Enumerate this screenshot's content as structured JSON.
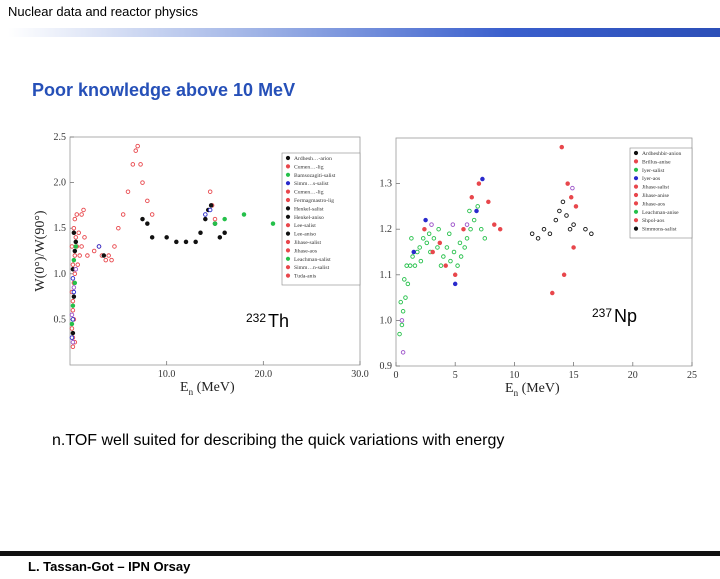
{
  "header": {
    "title": "Nuclear data and reactor physics"
  },
  "heading": "Poor knowledge above 10 MeV",
  "body_text": "n.TOF well suited for describing the quick variations with energy",
  "footer": {
    "author": "L. Tassan-Got – IPN Orsay"
  },
  "chart_data": [
    {
      "type": "scatter",
      "isotope": {
        "mass": "232",
        "symbol": "Th"
      },
      "ylabel": "W(0°)/W(90°)",
      "xlabel": {
        "main": "E",
        "sub": "n",
        "unit": "(MeV)"
      },
      "xlim": [
        0,
        30
      ],
      "ylim": [
        0,
        2.5
      ],
      "xticks": [
        "10.0",
        "20.0",
        "30.0"
      ],
      "yticks": [
        "0.5",
        "1.0",
        "1.5",
        "2.0",
        "2.5"
      ],
      "legend": [
        {
          "name": "Ardhesh…-arion",
          "color": "#111111"
        },
        {
          "name": "Cumen…-lig",
          "color": "#e8474c"
        },
        {
          "name": "Bamsozagiti-salist",
          "color": "#25c04a"
        },
        {
          "name": "Simm…s-salist",
          "color": "#2a2acc"
        },
        {
          "name": "Cumen…-lig",
          "color": "#e8474c"
        },
        {
          "name": "Fermagmastro-lig",
          "color": "#e8474c"
        },
        {
          "name": "Henkel-salist",
          "color": "#111111"
        },
        {
          "name": "Henkel-aniso",
          "color": "#111111"
        },
        {
          "name": "Lee-salist",
          "color": "#e8474c"
        },
        {
          "name": "Lee-aniso",
          "color": "#111111"
        },
        {
          "name": "Jihase-salist",
          "color": "#e8474c"
        },
        {
          "name": "Jihase-aos",
          "color": "#e8474c"
        },
        {
          "name": "Leachman-salist",
          "color": "#25c04a"
        },
        {
          "name": "Simm…n-salist",
          "color": "#e8474c"
        },
        {
          "name": "Tuda-anis",
          "color": "#e8474c"
        }
      ],
      "series": [
        {
          "color": "#e8474c",
          "points": [
            [
              0.2,
              0.4
            ],
            [
              0.3,
              0.6
            ],
            [
              0.2,
              0.8
            ],
            [
              0.4,
              0.9
            ],
            [
              0.3,
              1.1
            ],
            [
              0.5,
              1.2
            ],
            [
              0.2,
              1.3
            ],
            [
              0.3,
              0.3
            ],
            [
              0.4,
              0.5
            ],
            [
              0.3,
              0.7
            ],
            [
              0.5,
              1.0
            ],
            [
              0.6,
              1.4
            ],
            [
              0.4,
              1.5
            ],
            [
              0.5,
              1.6
            ],
            [
              0.7,
              1.3
            ],
            [
              0.8,
              1.1
            ],
            [
              1.0,
              1.2
            ],
            [
              1.2,
              1.3
            ],
            [
              0.9,
              1.45
            ],
            [
              1.5,
              1.4
            ],
            [
              1.8,
              1.2
            ],
            [
              2.5,
              1.25
            ],
            [
              3.0,
              1.3
            ],
            [
              3.3,
              1.2
            ],
            [
              3.7,
              1.15
            ],
            [
              4.0,
              1.2
            ],
            [
              4.3,
              1.15
            ],
            [
              4.6,
              1.3
            ],
            [
              5.0,
              1.5
            ],
            [
              5.5,
              1.65
            ],
            [
              6.0,
              1.9
            ],
            [
              6.5,
              2.2
            ],
            [
              6.8,
              2.35
            ],
            [
              7.0,
              2.4
            ],
            [
              7.3,
              2.2
            ],
            [
              7.5,
              2.0
            ],
            [
              8.0,
              1.8
            ],
            [
              8.5,
              1.65
            ],
            [
              14.5,
              1.9
            ],
            [
              14.7,
              1.75
            ],
            [
              15.0,
              1.6
            ],
            [
              1.2,
              1.65
            ],
            [
              1.4,
              1.7
            ],
            [
              0.7,
              1.65
            ],
            [
              0.3,
              0.2
            ],
            [
              0.5,
              0.25
            ]
          ]
        },
        {
          "color": "#111111",
          "points": [
            [
              0.3,
              0.35
            ],
            [
              0.4,
              0.75
            ],
            [
              0.3,
              1.05
            ],
            [
              0.5,
              1.25
            ],
            [
              0.6,
              1.35
            ],
            [
              0.4,
              1.45
            ],
            [
              7.5,
              1.6
            ],
            [
              8.0,
              1.55
            ],
            [
              8.5,
              1.4
            ],
            [
              10.0,
              1.4
            ],
            [
              11.0,
              1.35
            ],
            [
              12.0,
              1.35
            ],
            [
              13.0,
              1.35
            ],
            [
              13.5,
              1.45
            ],
            [
              14.0,
              1.6
            ],
            [
              14.3,
              1.7
            ],
            [
              14.6,
              1.75
            ],
            [
              15.0,
              1.55
            ],
            [
              15.5,
              1.4
            ],
            [
              16.0,
              1.45
            ],
            [
              3.5,
              1.2
            ]
          ]
        },
        {
          "color": "#2a2acc",
          "points": [
            [
              0.2,
              0.3
            ],
            [
              0.3,
              0.5
            ],
            [
              0.4,
              0.8
            ],
            [
              0.3,
              0.95
            ],
            [
              14.0,
              1.65
            ],
            [
              14.5,
              1.7
            ],
            [
              3.0,
              1.3
            ]
          ]
        },
        {
          "color": "#25c04a",
          "points": [
            [
              0.2,
              0.45
            ],
            [
              0.3,
              0.65
            ],
            [
              0.5,
              0.9
            ],
            [
              0.4,
              1.15
            ],
            [
              15.0,
              1.55
            ],
            [
              16.0,
              1.6
            ],
            [
              18.0,
              1.65
            ],
            [
              21.0,
              1.55
            ],
            [
              0.6,
              1.3
            ]
          ]
        },
        {
          "color": "#9a4fc8",
          "points": [
            [
              0.3,
              0.25
            ],
            [
              0.2,
              0.55
            ],
            [
              0.4,
              0.85
            ],
            [
              0.6,
              1.05
            ]
          ]
        }
      ]
    },
    {
      "type": "scatter",
      "isotope": {
        "mass": "237",
        "symbol": "Np"
      },
      "xlabel": {
        "main": "E",
        "sub": "n",
        "unit": "(MeV)"
      },
      "xlim": [
        0,
        25
      ],
      "ylim": [
        0.9,
        1.4
      ],
      "xticks": [
        "0",
        "5",
        "10",
        "15",
        "20",
        "25"
      ],
      "yticks": [
        "0.9",
        "1.0",
        "1.1",
        "1.2",
        "1.3"
      ],
      "legend": [
        {
          "name": "Ardheshbir-anion",
          "color": "#111111"
        },
        {
          "name": "Brillus-anise",
          "color": "#e8474c"
        },
        {
          "name": "Iyer-salist",
          "color": "#25c04a"
        },
        {
          "name": "Iyer-aos",
          "color": "#2a2acc"
        },
        {
          "name": "Jihase-salist",
          "color": "#e8474c"
        },
        {
          "name": "Jihase-anise",
          "color": "#e8474c"
        },
        {
          "name": "Jihase-aos",
          "color": "#e8474c"
        },
        {
          "name": "Leachman-anise",
          "color": "#25c04a"
        },
        {
          "name": "Shpol-aos",
          "color": "#e8474c"
        },
        {
          "name": "Simmons-salist",
          "color": "#111111"
        }
      ],
      "series": [
        {
          "color": "#25c04a",
          "points": [
            [
              0.3,
              0.97
            ],
            [
              0.5,
              0.99
            ],
            [
              0.6,
              1.02
            ],
            [
              0.8,
              1.05
            ],
            [
              1.0,
              1.08
            ],
            [
              1.2,
              1.12
            ],
            [
              1.4,
              1.14
            ],
            [
              1.6,
              1.12
            ],
            [
              1.8,
              1.15
            ],
            [
              2.0,
              1.16
            ],
            [
              2.3,
              1.18
            ],
            [
              2.6,
              1.17
            ],
            [
              2.9,
              1.15
            ],
            [
              3.2,
              1.18
            ],
            [
              3.5,
              1.16
            ],
            [
              3.8,
              1.12
            ],
            [
              4.0,
              1.14
            ],
            [
              4.3,
              1.16
            ],
            [
              4.6,
              1.13
            ],
            [
              4.9,
              1.15
            ],
            [
              5.2,
              1.12
            ],
            [
              5.5,
              1.14
            ],
            [
              5.8,
              1.16
            ],
            [
              6.0,
              1.18
            ],
            [
              6.3,
              1.2
            ],
            [
              6.6,
              1.22
            ],
            [
              6.9,
              1.25
            ],
            [
              7.2,
              1.2
            ],
            [
              7.5,
              1.18
            ],
            [
              0.9,
              1.12
            ],
            [
              1.3,
              1.18
            ],
            [
              2.1,
              1.13
            ],
            [
              2.8,
              1.19
            ],
            [
              3.6,
              1.2
            ],
            [
              4.5,
              1.19
            ],
            [
              5.4,
              1.17
            ],
            [
              6.2,
              1.24
            ],
            [
              0.4,
              1.04
            ],
            [
              0.7,
              1.09
            ]
          ]
        },
        {
          "color": "#e8474c",
          "points": [
            [
              2.4,
              1.2
            ],
            [
              3.1,
              1.15
            ],
            [
              3.7,
              1.17
            ],
            [
              4.2,
              1.12
            ],
            [
              5.0,
              1.1
            ],
            [
              5.7,
              1.2
            ],
            [
              6.4,
              1.27
            ],
            [
              7.0,
              1.3
            ],
            [
              7.8,
              1.26
            ],
            [
              8.3,
              1.21
            ],
            [
              8.8,
              1.2
            ],
            [
              13.2,
              1.06
            ],
            [
              14.0,
              1.38
            ],
            [
              14.5,
              1.3
            ],
            [
              14.8,
              1.27
            ],
            [
              15.2,
              1.25
            ],
            [
              15.0,
              1.16
            ],
            [
              14.2,
              1.1
            ]
          ]
        },
        {
          "color": "#111111",
          "points": [
            [
              11.5,
              1.19
            ],
            [
              12.0,
              1.18
            ],
            [
              12.5,
              1.2
            ],
            [
              13.0,
              1.19
            ],
            [
              13.5,
              1.22
            ],
            [
              13.8,
              1.24
            ],
            [
              14.1,
              1.26
            ],
            [
              14.4,
              1.23
            ],
            [
              14.7,
              1.2
            ],
            [
              15.0,
              1.21
            ],
            [
              16.0,
              1.2
            ],
            [
              16.5,
              1.19
            ]
          ]
        },
        {
          "color": "#2a2acc",
          "points": [
            [
              2.5,
              1.22
            ],
            [
              5.0,
              1.08
            ],
            [
              7.3,
              1.31
            ],
            [
              1.5,
              1.15
            ],
            [
              6.8,
              1.24
            ]
          ]
        },
        {
          "color": "#9a4fc8",
          "points": [
            [
              3.0,
              1.21
            ],
            [
              4.8,
              1.21
            ],
            [
              6.0,
              1.21
            ],
            [
              0.5,
              1.0
            ],
            [
              0.6,
              0.93
            ],
            [
              14.9,
              1.29
            ]
          ]
        }
      ]
    }
  ]
}
